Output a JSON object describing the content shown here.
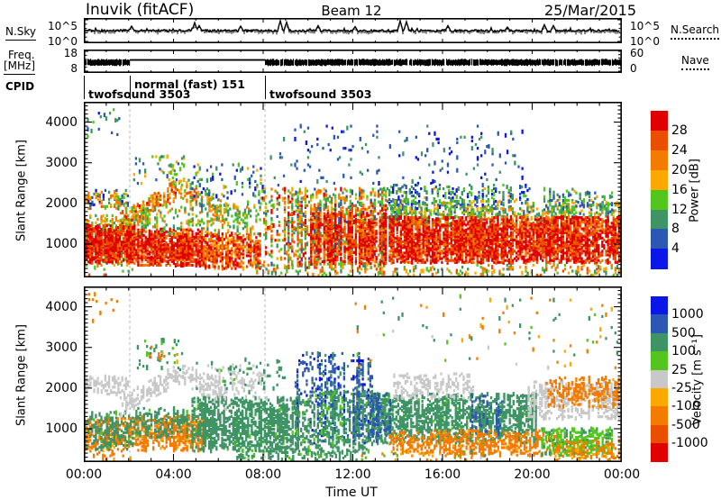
{
  "header": {
    "station": "Inuvik (fitACF)",
    "beam": "Beam 12",
    "date": "25/Mar/2015"
  },
  "gutter": {
    "nsky_label": "N.Sky",
    "nsky_top_tick": "10^5",
    "nsky_bottom_tick": "10^0",
    "nsearch_label": "N.Search",
    "freq_label_line1": "Freq.",
    "freq_label_line2": "[MHz]",
    "freq_top_tick": "18",
    "freq_bottom_tick": "8",
    "nave_label": "Nave",
    "nave_top_tick": "60",
    "nave_bottom_tick": "0",
    "cpid_label": "CPID"
  },
  "legend_styles": {
    "nsky": "solid",
    "nsearch": "dotted",
    "freq": "solid",
    "nave": "dotted"
  },
  "chart_data": {
    "type": "heatmap",
    "seed": 20150325,
    "time_axis": {
      "label": "Time UT",
      "tick_labels": [
        "00:00",
        "04:00",
        "08:00",
        "12:00",
        "16:00",
        "20:00",
        "00:00"
      ],
      "tick_hours": [
        0,
        4,
        8,
        12,
        16,
        20,
        24
      ],
      "minor_every_hours": 1,
      "range_hours": [
        0,
        24
      ]
    },
    "range_axis": {
      "label": "Slant Range [km]",
      "tick_km": [
        1000,
        2000,
        3000,
        4000
      ],
      "range_km": [
        180,
        4500
      ],
      "minor_every_km": 100
    },
    "boundary_hours": [
      2.05,
      8.08
    ],
    "nsky": {
      "scale_top": "10^5",
      "scale_bottom": "10^0",
      "base_rel": 14,
      "noise_rel": 2.4,
      "spikes": [
        {
          "t": 2.15,
          "a": 0.45
        },
        {
          "t": 4.95,
          "a": 0.8
        },
        {
          "t": 5.15,
          "a": 0.5
        },
        {
          "t": 7.0,
          "a": 0.45
        },
        {
          "t": 8.75,
          "a": 1.0
        },
        {
          "t": 9.05,
          "a": 0.85
        },
        {
          "t": 10.45,
          "a": 0.5
        },
        {
          "t": 12.1,
          "a": 0.4
        },
        {
          "t": 14.1,
          "a": 1.0
        },
        {
          "t": 14.4,
          "a": 0.9
        },
        {
          "t": 16.25,
          "a": 0.5
        },
        {
          "t": 18.9,
          "a": 0.35
        },
        {
          "t": 20.55,
          "a": 0.6
        },
        {
          "t": 20.95,
          "a": 0.5
        }
      ]
    },
    "freq": {
      "ylim_mhz": [
        8,
        18
      ],
      "nave_ylim": [
        0,
        60
      ],
      "segments": [
        {
          "t": [
            0,
            2.05
          ],
          "mode": "band",
          "f": [
            10.9,
            13.9
          ]
        },
        {
          "t": [
            2.05,
            8.08
          ],
          "mode": "line",
          "f": [
            13.7
          ]
        },
        {
          "t": [
            8.08,
            24
          ],
          "mode": "band",
          "f": [
            10.9,
            13.9
          ]
        }
      ]
    },
    "cpid": {
      "segments": [
        {
          "start_hour": 0.0,
          "label": "twofsound 3503",
          "raised": false
        },
        {
          "start_hour": 2.05,
          "label": "normal (fast) 151",
          "raised": true
        },
        {
          "start_hour": 8.08,
          "label": "twofsound 3503",
          "raised": false
        }
      ]
    },
    "power": {
      "title": "Power [dB]",
      "colorbar_tick_labels": [
        "28",
        "24",
        "20",
        "16",
        "12",
        "8",
        "4"
      ],
      "thresholds": [
        4,
        8,
        12,
        16,
        20,
        24,
        28
      ],
      "colors_ascending": [
        "#0b16e8",
        "#2c58b4",
        "#3e9464",
        "#52c61e",
        "#fca800",
        "#f27b00",
        "#ea4f00",
        "#e00000"
      ],
      "features": [
        {
          "t": [
            0.05,
            1.7
          ],
          "r": [
            3650,
            4350
          ],
          "density": 0.06,
          "value": [
            2,
            15
          ]
        },
        {
          "t": [
            0,
            2.0
          ],
          "r": [
            1880,
            2320
          ],
          "density": 0.35,
          "value": [
            2,
            26
          ]
        },
        {
          "t": [
            0,
            2.3
          ],
          "r": [
            480,
            1700
          ],
          "density": 0.45,
          "value": [
            10,
            24
          ]
        },
        {
          "t": [
            0,
            2.3
          ],
          "r": [
            560,
            1450
          ],
          "density": 0.9,
          "value": [
            23,
            35
          ]
        },
        {
          "t": [
            0.2,
            2.2
          ],
          "r": [
            200,
            420
          ],
          "density": 0.15,
          "value": [
            10,
            28
          ]
        },
        {
          "t": [
            1.6,
            4.3
          ],
          "r": [
            1330,
            1760
          ],
          "r_end": [
            2150,
            2620
          ],
          "density": 0.5,
          "value": [
            14,
            30
          ]
        },
        {
          "t": [
            4.3,
            6.4
          ],
          "r": [
            2150,
            2680
          ],
          "r_end": [
            1450,
            2000
          ],
          "density": 0.4,
          "value": [
            10,
            26
          ]
        },
        {
          "t": [
            2.2,
            4.5
          ],
          "r": [
            2450,
            3150
          ],
          "density": 0.13,
          "value": [
            4,
            20
          ]
        },
        {
          "t": [
            2.3,
            5.3
          ],
          "r": [
            480,
            1350
          ],
          "density": 0.9,
          "value": [
            22,
            35
          ]
        },
        {
          "t": [
            5.3,
            7.9
          ],
          "r": [
            400,
            1250
          ],
          "density": 0.68,
          "value": [
            18,
            33
          ]
        },
        {
          "t": [
            2.3,
            7.9
          ],
          "r": [
            1250,
            1950
          ],
          "density": 0.25,
          "value": [
            8,
            22
          ]
        },
        {
          "t": [
            4.8,
            8.1
          ],
          "r": [
            1950,
            2950
          ],
          "density": 0.14,
          "value": [
            2,
            18
          ]
        },
        {
          "t": [
            8.0,
            13.6
          ],
          "r": [
            420,
            2350
          ],
          "density": 0.42,
          "value": [
            6,
            30
          ],
          "streaky": true
        },
        {
          "t": [
            10.1,
            13.5
          ],
          "r": [
            520,
            1750
          ],
          "density": 0.62,
          "value": [
            21,
            35
          ],
          "streaky": true
        },
        {
          "t": [
            8.3,
            19.6
          ],
          "r": [
            2450,
            3900
          ],
          "density": 0.04,
          "value": [
            2,
            10
          ]
        },
        {
          "t": [
            13.5,
            20.0
          ],
          "r": [
            1650,
            2450
          ],
          "density": 0.28,
          "value": [
            2,
            17
          ]
        },
        {
          "t": [
            13.6,
            24
          ],
          "r": [
            1450,
            2050
          ],
          "density": 0.3,
          "value": [
            8,
            21
          ]
        },
        {
          "t": [
            13.6,
            24
          ],
          "r": [
            550,
            1650
          ],
          "density": 0.88,
          "value": [
            22,
            35
          ]
        },
        {
          "t": [
            7.6,
            24
          ],
          "r": [
            190,
            480
          ],
          "density": 0.2,
          "value": [
            8,
            26
          ]
        },
        {
          "t": [
            20.5,
            23.6
          ],
          "r": [
            1750,
            2350
          ],
          "density": 0.25,
          "value": [
            4,
            18
          ]
        }
      ]
    },
    "velocity": {
      "title": "Velocity [m s⁻¹]",
      "colorbar_tick_labels": [
        "1000",
        "500",
        "100",
        "25",
        "-25",
        "-100",
        "-500",
        "-1000"
      ],
      "thresholds": [
        -1000,
        -500,
        -100,
        -25,
        25,
        100,
        500,
        1000
      ],
      "colors_ascending": [
        "#e00000",
        "#ea4f00",
        "#f27b00",
        "#fca800",
        "#c8c8c8",
        "#52c61e",
        "#3e9464",
        "#2c58b4",
        "#0b16e8"
      ],
      "features": [
        {
          "t": [
            0,
            2.3
          ],
          "r": [
            450,
            1250
          ],
          "density": 0.5,
          "value": [
            -450,
            -60
          ]
        },
        {
          "t": [
            0,
            2.3
          ],
          "r": [
            500,
            1400
          ],
          "density": 0.35,
          "value": [
            80,
            420
          ]
        },
        {
          "t": [
            0,
            2.0
          ],
          "r": [
            1850,
            2280
          ],
          "density": 0.4,
          "value": [
            -24,
            24
          ]
        },
        {
          "t": [
            0.2,
            1.6
          ],
          "r": [
            3650,
            4350
          ],
          "density": 0.05,
          "value": [
            -350,
            -40
          ]
        },
        {
          "t": [
            0.4,
            2.2
          ],
          "r": [
            200,
            420
          ],
          "density": 0.2,
          "value": [
            -300,
            -60
          ]
        },
        {
          "t": [
            1.6,
            4.3
          ],
          "r": [
            1330,
            1760
          ],
          "r_end": [
            2150,
            2620
          ],
          "density": 0.45,
          "value": [
            -24,
            24
          ]
        },
        {
          "t": [
            4.3,
            6.4
          ],
          "r": [
            2150,
            2680
          ],
          "r_end": [
            1450,
            2000
          ],
          "density": 0.35,
          "value": [
            -24,
            24
          ]
        },
        {
          "t": [
            2.3,
            5.4
          ],
          "r": [
            470,
            1300
          ],
          "density": 0.62,
          "value": [
            -420,
            -60
          ]
        },
        {
          "t": [
            2.3,
            5.4
          ],
          "r": [
            800,
            1500
          ],
          "density": 0.3,
          "value": [
            80,
            380
          ]
        },
        {
          "t": [
            2.2,
            4.5
          ],
          "r": [
            2450,
            3200
          ],
          "density": 0.1,
          "value": [
            40,
            320
          ]
        },
        {
          "t": [
            2.4,
            4.2
          ],
          "r": [
            2600,
            3100
          ],
          "density": 0.06,
          "value": [
            -250,
            -40
          ]
        },
        {
          "t": [
            4.8,
            9.6
          ],
          "r": [
            450,
            1750
          ],
          "density": 0.6,
          "value": [
            90,
            460
          ]
        },
        {
          "t": [
            5.5,
            8.2
          ],
          "r": [
            1750,
            2550
          ],
          "density": 0.2,
          "value": [
            -24,
            24
          ]
        },
        {
          "t": [
            5.0,
            9.0
          ],
          "r": [
            1900,
            2700
          ],
          "density": 0.08,
          "value": [
            60,
            350
          ]
        },
        {
          "t": [
            9.4,
            12.9
          ],
          "r": [
            650,
            2850
          ],
          "density": 0.35,
          "value": [
            380,
            1150
          ],
          "streaky": true
        },
        {
          "t": [
            9.4,
            12.9
          ],
          "r": [
            400,
            1900
          ],
          "density": 0.35,
          "value": [
            70,
            400
          ]
        },
        {
          "t": [
            12.9,
            20.2
          ],
          "r": [
            650,
            1850
          ],
          "density": 0.55,
          "value": [
            90,
            460
          ]
        },
        {
          "t": [
            12.0,
            13.7
          ],
          "r": [
            700,
            1900
          ],
          "density": 0.35,
          "value": [
            420,
            1000
          ],
          "streaky": true
        },
        {
          "t": [
            17.2,
            18.7
          ],
          "r": [
            800,
            1800
          ],
          "density": 0.3,
          "value": [
            420,
            950
          ],
          "streaky": true
        },
        {
          "t": [
            13.8,
            17.4
          ],
          "r": [
            1750,
            2350
          ],
          "density": 0.3,
          "value": [
            -24,
            24
          ]
        },
        {
          "t": [
            13.6,
            21.2
          ],
          "r": [
            350,
            950
          ],
          "density": 0.45,
          "value": [
            -420,
            -70
          ]
        },
        {
          "t": [
            19.8,
            24
          ],
          "r": [
            1250,
            2150
          ],
          "density": 0.5,
          "value": [
            -24,
            24
          ]
        },
        {
          "t": [
            20.6,
            23.9
          ],
          "r": [
            1550,
            2250
          ],
          "density": 0.35,
          "value": [
            -480,
            -90
          ]
        },
        {
          "t": [
            20.4,
            23.6
          ],
          "r": [
            350,
            1000
          ],
          "density": 0.5,
          "value": [
            28,
            120
          ]
        },
        {
          "t": [
            21.0,
            24
          ],
          "r": [
            230,
            700
          ],
          "density": 0.35,
          "value": [
            -300,
            -40
          ]
        },
        {
          "t": [
            6.8,
            12.2
          ],
          "r": [
            190,
            460
          ],
          "density": 0.3,
          "value": [
            40,
            350
          ]
        },
        {
          "t": [
            12.2,
            18.0
          ],
          "r": [
            190,
            430
          ],
          "density": 0.15,
          "value": [
            -250,
            150
          ]
        },
        {
          "t": [
            12.0,
            24
          ],
          "r": [
            2500,
            4300
          ],
          "density": 0.02,
          "value": [
            -300,
            300
          ]
        }
      ]
    }
  }
}
